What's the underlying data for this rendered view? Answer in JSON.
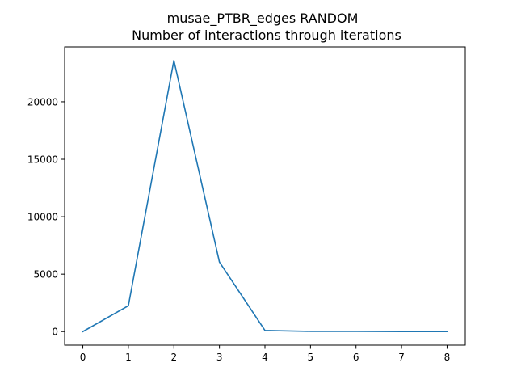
{
  "chart_data": {
    "type": "line",
    "title": "musae_PTBR_edges RANDOM",
    "subtitle": "Number of interactions through iterations",
    "xlabel": "",
    "ylabel": "",
    "x": [
      0,
      1,
      2,
      3,
      4,
      5,
      6,
      7,
      8
    ],
    "series": [
      {
        "values": [
          0,
          2250,
          23600,
          6050,
          100,
          20,
          15,
          5,
          0
        ],
        "color": "#1f77b4"
      }
    ],
    "xticks": [
      "0",
      "1",
      "2",
      "3",
      "4",
      "5",
      "6",
      "7",
      "8"
    ],
    "yticks": [
      "0",
      "5000",
      "10000",
      "15000",
      "20000"
    ],
    "xlim": [
      -0.4,
      8.4
    ],
    "ylim": [
      -1180,
      24780
    ],
    "grid": false,
    "legend": "none"
  }
}
